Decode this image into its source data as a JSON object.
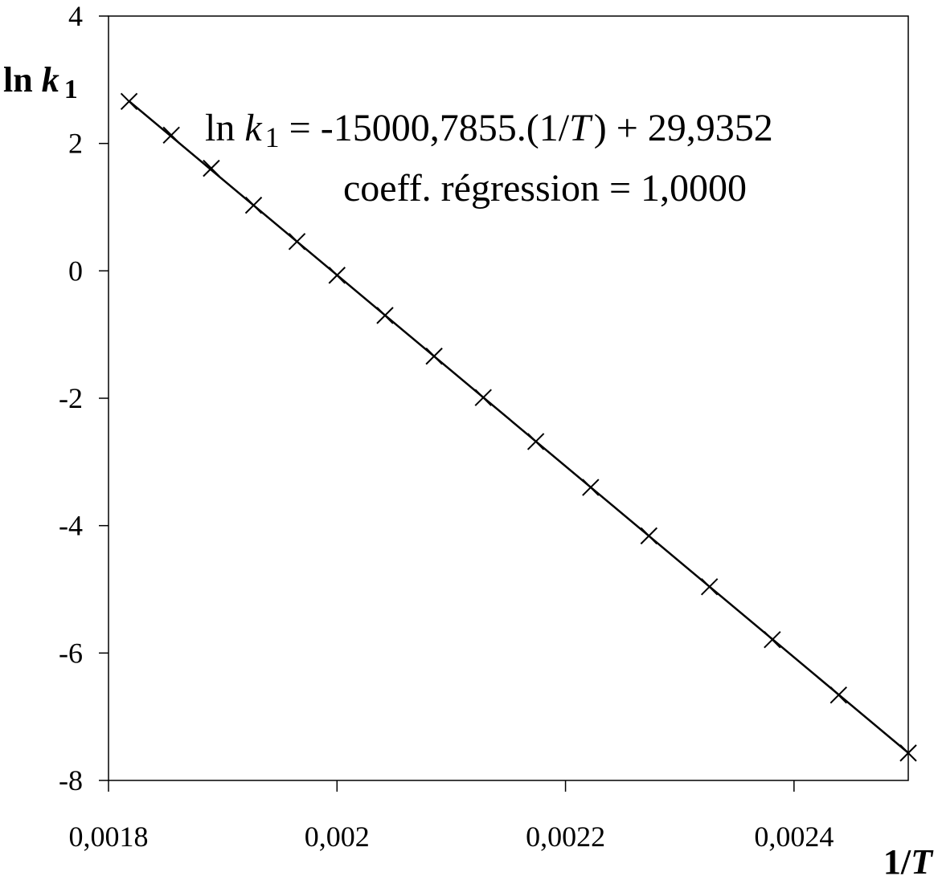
{
  "chart_data": {
    "type": "scatter",
    "xlabel": "1/T",
    "ylabel": "ln k1",
    "xlim": [
      0.0018,
      0.0025
    ],
    "ylim": [
      -8,
      4
    ],
    "grid": false,
    "x_ticks": [
      {
        "value": 0.0018,
        "label": "0,0018"
      },
      {
        "value": 0.002,
        "label": "0,002"
      },
      {
        "value": 0.0022,
        "label": "0,0022"
      },
      {
        "value": 0.0024,
        "label": "0,0024"
      }
    ],
    "y_ticks": [
      {
        "value": 4,
        "label": "4"
      },
      {
        "value": 2,
        "label": "2"
      },
      {
        "value": 0,
        "label": "0"
      },
      {
        "value": -2,
        "label": "-2"
      },
      {
        "value": -4,
        "label": "-4"
      },
      {
        "value": -6,
        "label": "-6"
      },
      {
        "value": -8,
        "label": "-8"
      }
    ],
    "series": [
      {
        "marker": "x",
        "color": "#000000",
        "x": [
          0.001818,
          0.001855,
          0.00189,
          0.001927,
          0.001965,
          0.002,
          0.002042,
          0.002085,
          0.002128,
          0.002174,
          0.002222,
          0.002273,
          0.002326,
          0.002381,
          0.002439,
          0.0025
        ],
        "y": [
          2.66,
          2.13,
          1.61,
          1.03,
          0.46,
          -0.07,
          -0.7,
          -1.34,
          -1.99,
          -2.68,
          -3.4,
          -4.16,
          -4.96,
          -5.79,
          -6.66,
          -7.57
        ]
      }
    ],
    "fit": {
      "slope": -15000.7855,
      "intercept": 29.9352,
      "color": "#000000"
    },
    "annotation": {
      "eq_prefix": "ln ",
      "eq_k": "k",
      "eq_sub": "1",
      "eq_mid": " = -15000,7855.(1/",
      "eq_T": "T",
      "eq_suffix": ") + 29,9352",
      "regression": "coeff. régression = 1,0000"
    },
    "axis_titles": {
      "y_prefix": "ln ",
      "y_k": "k",
      "y_sub": "1",
      "x_title": "1/",
      "x_T": "T"
    }
  }
}
